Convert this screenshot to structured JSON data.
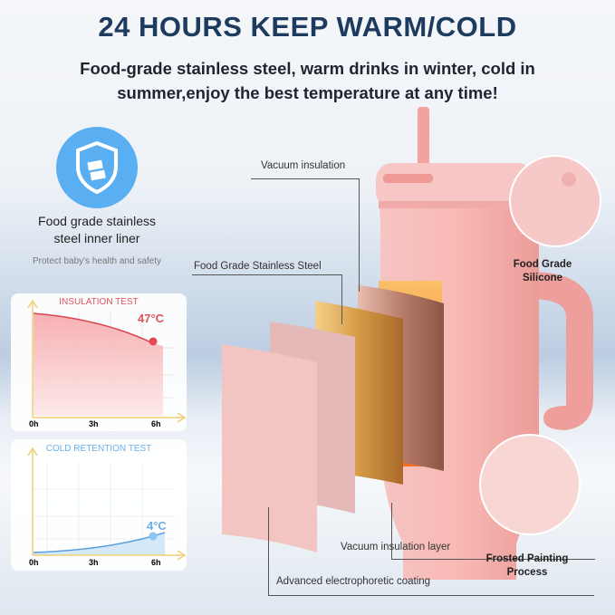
{
  "header": {
    "title": "24 HOURS KEEP WARM/COLD",
    "subtitle_line1": "Food-grade stainless steel, warm drinks in winter, cold in",
    "subtitle_line2": "summer,enjoy the best temperature at any time!"
  },
  "feature": {
    "icon": "shield-steel-icon",
    "line1": "Food grade stainless",
    "line2": "steel inner liner",
    "caption": "Protect baby's health and safety",
    "color": "#5aaef2"
  },
  "charts": [
    {
      "title": "INSULATION TEST",
      "value_label": "47°C",
      "x_ticks": [
        "0h",
        "3h",
        "6h"
      ],
      "color": "#e0535c",
      "trend": "decreasing"
    },
    {
      "title": "COLD RETENTION TEST",
      "value_label": "4°C",
      "x_ticks": [
        "0h",
        "3h",
        "6h"
      ],
      "color": "#6aaee6",
      "trend": "increasing"
    }
  ],
  "callouts": {
    "vacuum_insulation": "Vacuum insulation",
    "stainless_steel": "Food Grade Stainless Steel",
    "silicone_1": "Food Grade",
    "silicone_2": "Silicone",
    "vacuum_layer": "Vacuum insulation layer",
    "frosted_1": "Frosted Painting",
    "frosted_2": "Process",
    "coating": "Advanced electrophoretic coating"
  },
  "colors": {
    "title": "#1d3b5e",
    "tumbler": "#f4b3b0",
    "gold": "#d9a452",
    "heat": "#f39a3c"
  }
}
